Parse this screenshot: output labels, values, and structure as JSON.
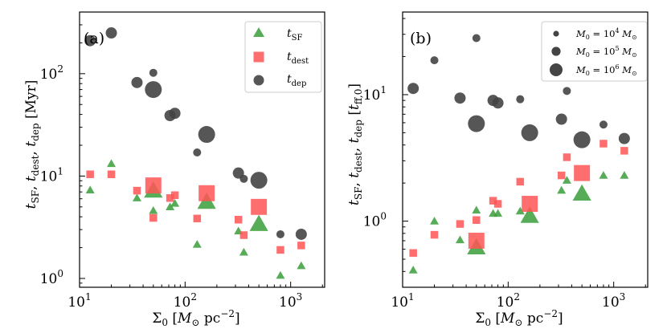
{
  "chart_data": [
    {
      "panel_label": "(a)",
      "type": "scatter",
      "xscale": "log",
      "yscale": "log",
      "xlim": [
        10,
        2100
      ],
      "ylim": [
        0.82,
        400
      ],
      "xlabel": "Σ0 [M⊙ pc^-2]",
      "ylabel": "tSF, tdest, tdep [Myr]",
      "x_ticks": [
        {
          "value": 10,
          "base": "10",
          "exp": "1"
        },
        {
          "value": 100,
          "base": "10",
          "exp": "2"
        },
        {
          "value": 1000,
          "base": "10",
          "exp": "3"
        }
      ],
      "y_ticks": [
        {
          "value": 1,
          "base": "10",
          "exp": "0"
        },
        {
          "value": 10,
          "base": "10",
          "exp": "1"
        },
        {
          "value": 100,
          "base": "10",
          "exp": "2"
        }
      ],
      "legend": {
        "position": "top-right",
        "entries": [
          {
            "series": "tSF",
            "label_main": "t",
            "label_sub": "SF"
          },
          {
            "series": "tdest",
            "label_main": "t",
            "label_sub": "dest"
          },
          {
            "series": "tdep",
            "label_main": "t",
            "label_sub": "dep"
          }
        ]
      },
      "series": [
        {
          "name": "tSF",
          "marker": "triangle",
          "color": "#3a9e3a",
          "points": [
            {
              "x": 12.6,
              "y": 7.3,
              "mass": 4
            },
            {
              "x": 20,
              "y": 13.2,
              "mass": 4
            },
            {
              "x": 35,
              "y": 6.1,
              "mass": 4
            },
            {
              "x": 50,
              "y": 7.2,
              "mass": 6
            },
            {
              "x": 50,
              "y": 4.6,
              "mass": 4
            },
            {
              "x": 72,
              "y": 5.0,
              "mass": 4
            },
            {
              "x": 80,
              "y": 5.4,
              "mass": 4
            },
            {
              "x": 130,
              "y": 2.15,
              "mass": 4
            },
            {
              "x": 160,
              "y": 5.6,
              "mass": 6
            },
            {
              "x": 320,
              "y": 2.9,
              "mass": 4
            },
            {
              "x": 360,
              "y": 1.8,
              "mass": 4
            },
            {
              "x": 500,
              "y": 3.4,
              "mass": 6
            },
            {
              "x": 800,
              "y": 1.07,
              "mass": 4
            },
            {
              "x": 1260,
              "y": 1.33,
              "mass": 4
            }
          ]
        },
        {
          "name": "tdest",
          "marker": "square",
          "color": "#ff5555",
          "points": [
            {
              "x": 12.6,
              "y": 10.4,
              "mass": 4
            },
            {
              "x": 20,
              "y": 10.4,
              "mass": 4
            },
            {
              "x": 35,
              "y": 7.2,
              "mass": 4
            },
            {
              "x": 50,
              "y": 8.1,
              "mass": 6
            },
            {
              "x": 50,
              "y": 3.9,
              "mass": 4
            },
            {
              "x": 72,
              "y": 6.1,
              "mass": 4
            },
            {
              "x": 80,
              "y": 6.5,
              "mass": 4
            },
            {
              "x": 130,
              "y": 3.85,
              "mass": 4
            },
            {
              "x": 160,
              "y": 6.8,
              "mass": 6
            },
            {
              "x": 320,
              "y": 3.75,
              "mass": 4
            },
            {
              "x": 360,
              "y": 2.65,
              "mass": 4
            },
            {
              "x": 500,
              "y": 5.0,
              "mass": 6
            },
            {
              "x": 800,
              "y": 1.9,
              "mass": 4
            },
            {
              "x": 1260,
              "y": 2.1,
              "mass": 4
            }
          ]
        },
        {
          "name": "tdep",
          "marker": "circle",
          "color": "#444444",
          "points": [
            {
              "x": 12.6,
              "y": 210,
              "mass": 5
            },
            {
              "x": 20,
              "y": 250,
              "mass": 5
            },
            {
              "x": 35,
              "y": 82,
              "mass": 5
            },
            {
              "x": 50,
              "y": 70,
              "mass": 6
            },
            {
              "x": 50,
              "y": 102,
              "mass": 4
            },
            {
              "x": 72,
              "y": 39,
              "mass": 5
            },
            {
              "x": 80,
              "y": 41,
              "mass": 5
            },
            {
              "x": 130,
              "y": 17,
              "mass": 4
            },
            {
              "x": 160,
              "y": 25.5,
              "mass": 6
            },
            {
              "x": 320,
              "y": 10.7,
              "mass": 5
            },
            {
              "x": 360,
              "y": 9.4,
              "mass": 4
            },
            {
              "x": 500,
              "y": 9.1,
              "mass": 6
            },
            {
              "x": 800,
              "y": 2.7,
              "mass": 4
            },
            {
              "x": 1260,
              "y": 2.7,
              "mass": 5
            }
          ]
        }
      ]
    },
    {
      "panel_label": "(b)",
      "type": "scatter",
      "xscale": "log",
      "yscale": "log",
      "xlim": [
        10,
        2100
      ],
      "ylim": [
        0.3,
        45
      ],
      "xlabel": "Σ0 [M⊙ pc^-2]",
      "ylabel": "tSF, tdest, tdep [tff,0]",
      "x_ticks": [
        {
          "value": 10,
          "base": "10",
          "exp": "1"
        },
        {
          "value": 100,
          "base": "10",
          "exp": "2"
        },
        {
          "value": 1000,
          "base": "10",
          "exp": "3"
        }
      ],
      "y_ticks": [
        {
          "value": 1,
          "base": "10",
          "exp": "0"
        },
        {
          "value": 10,
          "base": "10",
          "exp": "1"
        }
      ],
      "legend": {
        "position": "top-right",
        "entries": [
          {
            "mass": 4,
            "label_pre": "M",
            "label_sub": "0",
            "label_mid": " = 10",
            "label_exp": "4",
            "label_unit": " M",
            "label_unit_sub": "⊙"
          },
          {
            "mass": 5,
            "label_pre": "M",
            "label_sub": "0",
            "label_mid": " = 10",
            "label_exp": "5",
            "label_unit": " M",
            "label_unit_sub": "⊙"
          },
          {
            "mass": 6,
            "label_pre": "M",
            "label_sub": "0",
            "label_mid": " = 10",
            "label_exp": "6",
            "label_unit": " M",
            "label_unit_sub": "⊙"
          }
        ]
      },
      "series": [
        {
          "name": "tSF",
          "marker": "triangle",
          "color": "#3a9e3a",
          "points": [
            {
              "x": 12.6,
              "y": 0.41,
              "mass": 4
            },
            {
              "x": 20,
              "y": 1.0,
              "mass": 4
            },
            {
              "x": 35,
              "y": 0.71,
              "mass": 4
            },
            {
              "x": 50,
              "y": 0.62,
              "mass": 6
            },
            {
              "x": 50,
              "y": 1.22,
              "mass": 4
            },
            {
              "x": 72,
              "y": 1.15,
              "mass": 4
            },
            {
              "x": 80,
              "y": 1.15,
              "mass": 4
            },
            {
              "x": 130,
              "y": 1.2,
              "mass": 4
            },
            {
              "x": 160,
              "y": 1.1,
              "mass": 6
            },
            {
              "x": 320,
              "y": 1.75,
              "mass": 4
            },
            {
              "x": 360,
              "y": 2.1,
              "mass": 4
            },
            {
              "x": 500,
              "y": 1.65,
              "mass": 6
            },
            {
              "x": 800,
              "y": 2.3,
              "mass": 4
            },
            {
              "x": 1260,
              "y": 2.3,
              "mass": 4
            }
          ]
        },
        {
          "name": "tdest",
          "marker": "square",
          "color": "#ff5555",
          "points": [
            {
              "x": 12.6,
              "y": 0.56,
              "mass": 4
            },
            {
              "x": 20,
              "y": 0.78,
              "mass": 4
            },
            {
              "x": 35,
              "y": 0.95,
              "mass": 4
            },
            {
              "x": 50,
              "y": 0.7,
              "mass": 6
            },
            {
              "x": 50,
              "y": 1.02,
              "mass": 4
            },
            {
              "x": 72,
              "y": 1.45,
              "mass": 4
            },
            {
              "x": 80,
              "y": 1.37,
              "mass": 4
            },
            {
              "x": 130,
              "y": 2.05,
              "mass": 4
            },
            {
              "x": 160,
              "y": 1.37,
              "mass": 6
            },
            {
              "x": 320,
              "y": 2.3,
              "mass": 4
            },
            {
              "x": 360,
              "y": 3.2,
              "mass": 4
            },
            {
              "x": 500,
              "y": 2.4,
              "mass": 6
            },
            {
              "x": 800,
              "y": 4.1,
              "mass": 4
            },
            {
              "x": 1260,
              "y": 3.6,
              "mass": 4
            }
          ]
        },
        {
          "name": "tdep",
          "marker": "circle",
          "color": "#444444",
          "points": [
            {
              "x": 12.6,
              "y": 11.2,
              "mass": 5
            },
            {
              "x": 20,
              "y": 18.7,
              "mass": 4
            },
            {
              "x": 35,
              "y": 9.4,
              "mass": 5
            },
            {
              "x": 50,
              "y": 5.9,
              "mass": 6
            },
            {
              "x": 50,
              "y": 28,
              "mass": 4
            },
            {
              "x": 72,
              "y": 9.0,
              "mass": 5
            },
            {
              "x": 80,
              "y": 8.6,
              "mass": 5
            },
            {
              "x": 130,
              "y": 9.2,
              "mass": 4
            },
            {
              "x": 160,
              "y": 5.0,
              "mass": 6
            },
            {
              "x": 320,
              "y": 6.4,
              "mass": 5
            },
            {
              "x": 360,
              "y": 10.7,
              "mass": 4
            },
            {
              "x": 500,
              "y": 4.4,
              "mass": 6
            },
            {
              "x": 800,
              "y": 5.8,
              "mass": 4
            },
            {
              "x": 1260,
              "y": 4.5,
              "mass": 5
            }
          ]
        }
      ]
    }
  ]
}
